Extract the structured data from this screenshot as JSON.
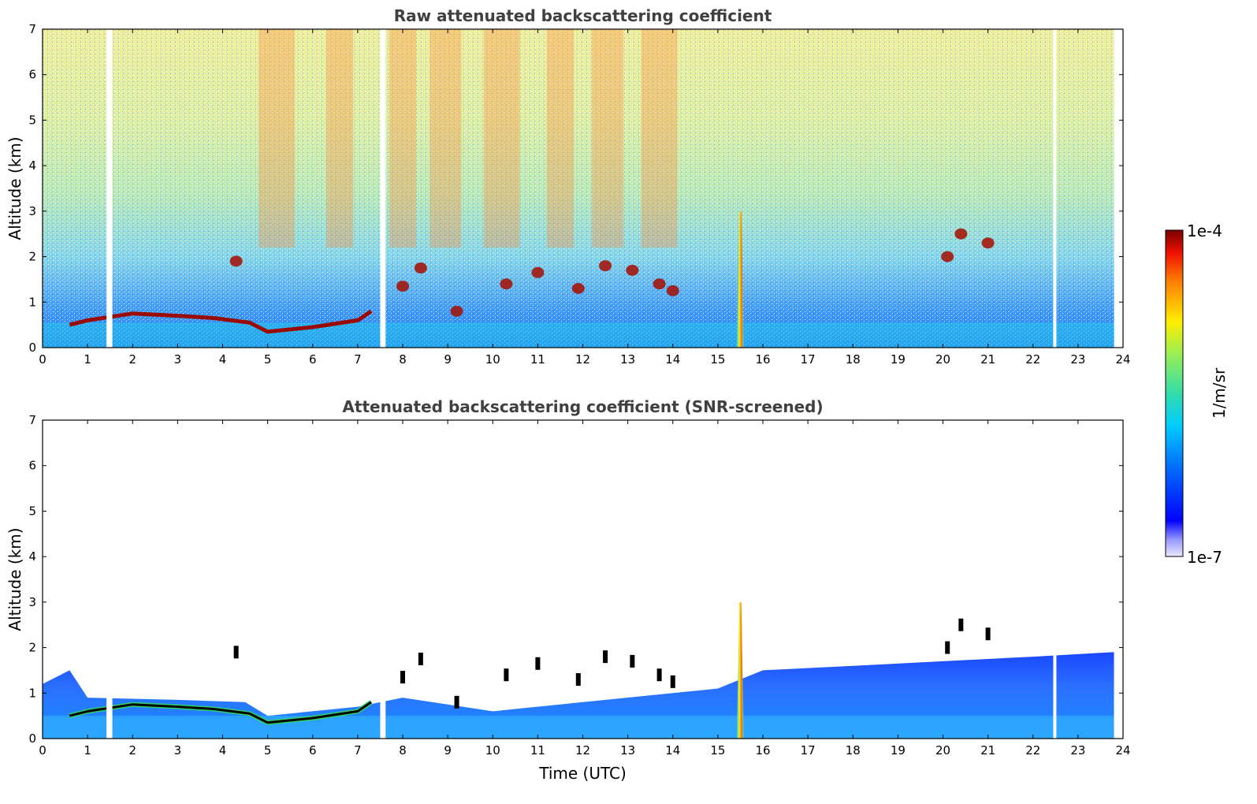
{
  "chart_data": [
    {
      "type": "heatmap",
      "title": "Raw attenuated backscattering coefficient",
      "xlabel": "",
      "ylabel": "Altitude (km)",
      "xlim": [
        0,
        24
      ],
      "ylim": [
        0,
        7
      ],
      "xticks": [
        "0",
        "1",
        "2",
        "3",
        "4",
        "5",
        "6",
        "7",
        "8",
        "9",
        "10",
        "11",
        "12",
        "13",
        "14",
        "15",
        "16",
        "17",
        "18",
        "19",
        "20",
        "21",
        "22",
        "23",
        "24"
      ],
      "yticks": [
        "0",
        "1",
        "2",
        "3",
        "4",
        "5",
        "6",
        "7"
      ],
      "data_gaps_utc": [
        [
          1.42,
          1.55
        ],
        [
          7.5,
          7.62
        ],
        [
          22.45,
          22.52
        ],
        [
          23.8,
          24
        ]
      ],
      "aerosol_layer_km": [
        {
          "t": 0.6,
          "z": 0.5
        },
        {
          "t": 1.0,
          "z": 0.6
        },
        {
          "t": 2.0,
          "z": 0.75
        },
        {
          "t": 3.0,
          "z": 0.7
        },
        {
          "t": 3.8,
          "z": 0.65
        },
        {
          "t": 4.6,
          "z": 0.55
        },
        {
          "t": 5.0,
          "z": 0.35
        },
        {
          "t": 6.0,
          "z": 0.45
        },
        {
          "t": 7.0,
          "z": 0.6
        },
        {
          "t": 7.3,
          "z": 0.8
        }
      ],
      "cloud_features_km": [
        {
          "t": 4.3,
          "z": 1.9
        },
        {
          "t": 8.0,
          "z": 1.35
        },
        {
          "t": 8.4,
          "z": 1.75
        },
        {
          "t": 9.2,
          "z": 0.8
        },
        {
          "t": 10.3,
          "z": 1.4
        },
        {
          "t": 11.0,
          "z": 1.65
        },
        {
          "t": 11.9,
          "z": 1.3
        },
        {
          "t": 12.5,
          "z": 1.8
        },
        {
          "t": 13.1,
          "z": 1.7
        },
        {
          "t": 13.7,
          "z": 1.4
        },
        {
          "t": 14.0,
          "z": 1.25
        },
        {
          "t": 20.1,
          "z": 2.0
        },
        {
          "t": 20.4,
          "z": 2.5
        },
        {
          "t": 21.0,
          "z": 2.3
        }
      ],
      "precip_streak": {
        "t": 15.5,
        "z_top": 3.0
      }
    },
    {
      "type": "heatmap",
      "title": "Attenuated backscattering coefficient (SNR-screened)",
      "xlabel": "Time (UTC)",
      "ylabel": "Altitude (km)",
      "xlim": [
        0,
        24
      ],
      "ylim": [
        0,
        7
      ],
      "xticks": [
        "0",
        "1",
        "2",
        "3",
        "4",
        "5",
        "6",
        "7",
        "8",
        "9",
        "10",
        "11",
        "12",
        "13",
        "14",
        "15",
        "16",
        "17",
        "18",
        "19",
        "20",
        "21",
        "22",
        "23",
        "24"
      ],
      "yticks": [
        "0",
        "1",
        "2",
        "3",
        "4",
        "5",
        "6",
        "7"
      ],
      "boundary_layer_top_km": [
        {
          "t": 0.0,
          "z": 1.2
        },
        {
          "t": 0.6,
          "z": 1.5
        },
        {
          "t": 1.0,
          "z": 0.9
        },
        {
          "t": 3.0,
          "z": 0.85
        },
        {
          "t": 4.5,
          "z": 0.8
        },
        {
          "t": 5.0,
          "z": 0.5
        },
        {
          "t": 7.0,
          "z": 0.7
        },
        {
          "t": 8.0,
          "z": 0.9
        },
        {
          "t": 10.0,
          "z": 0.6
        },
        {
          "t": 12.0,
          "z": 0.8
        },
        {
          "t": 14.0,
          "z": 1.0
        },
        {
          "t": 15.0,
          "z": 1.1
        },
        {
          "t": 16.0,
          "z": 1.5
        },
        {
          "t": 18.0,
          "z": 1.6
        },
        {
          "t": 20.0,
          "z": 1.7
        },
        {
          "t": 22.0,
          "z": 1.8
        },
        {
          "t": 23.8,
          "z": 1.9
        }
      ]
    }
  ],
  "colorbar": {
    "min_label": "1e-7",
    "max_label": "1e-4",
    "unit_label": "1/m/sr",
    "scale": "log",
    "colormap": "jet"
  },
  "colors": {
    "title": "#404040",
    "axis": "#000000",
    "missing": "#ffffff"
  }
}
